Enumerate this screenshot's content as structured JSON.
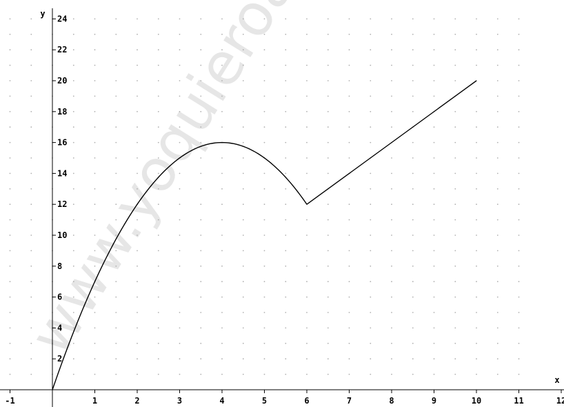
{
  "chart_data": {
    "type": "line",
    "xlabel": "x",
    "ylabel": "y",
    "xlim": [
      -1,
      12
    ],
    "ylim": [
      0,
      24
    ],
    "x_ticks": [
      -1,
      1,
      2,
      3,
      4,
      5,
      6,
      7,
      8,
      9,
      10,
      11,
      12
    ],
    "y_ticks": [
      2,
      4,
      6,
      8,
      10,
      12,
      14,
      16,
      18,
      20,
      22,
      24
    ],
    "grid": "dotted",
    "series": [
      {
        "segments": [
          {
            "kind": "parabola",
            "from": [
              0,
              0
            ],
            "vertex": [
              4,
              16
            ],
            "to": [
              6,
              12
            ]
          },
          {
            "kind": "line",
            "from": [
              6,
              12
            ],
            "to": [
              10,
              20
            ]
          }
        ],
        "points": [
          [
            0,
            0
          ],
          [
            1,
            7
          ],
          [
            2,
            12
          ],
          [
            3,
            15
          ],
          [
            4,
            16
          ],
          [
            5,
            15
          ],
          [
            6,
            12
          ],
          [
            7,
            14
          ],
          [
            8,
            16
          ],
          [
            9,
            18
          ],
          [
            10,
            20
          ]
        ],
        "color": "#000000"
      }
    ],
    "watermark": "www.yoquieroaprobar",
    "colors": {
      "line": "#000000",
      "axis": "#000000",
      "grid": "#b0b0b0",
      "watermark": "#e6e6e6"
    }
  }
}
